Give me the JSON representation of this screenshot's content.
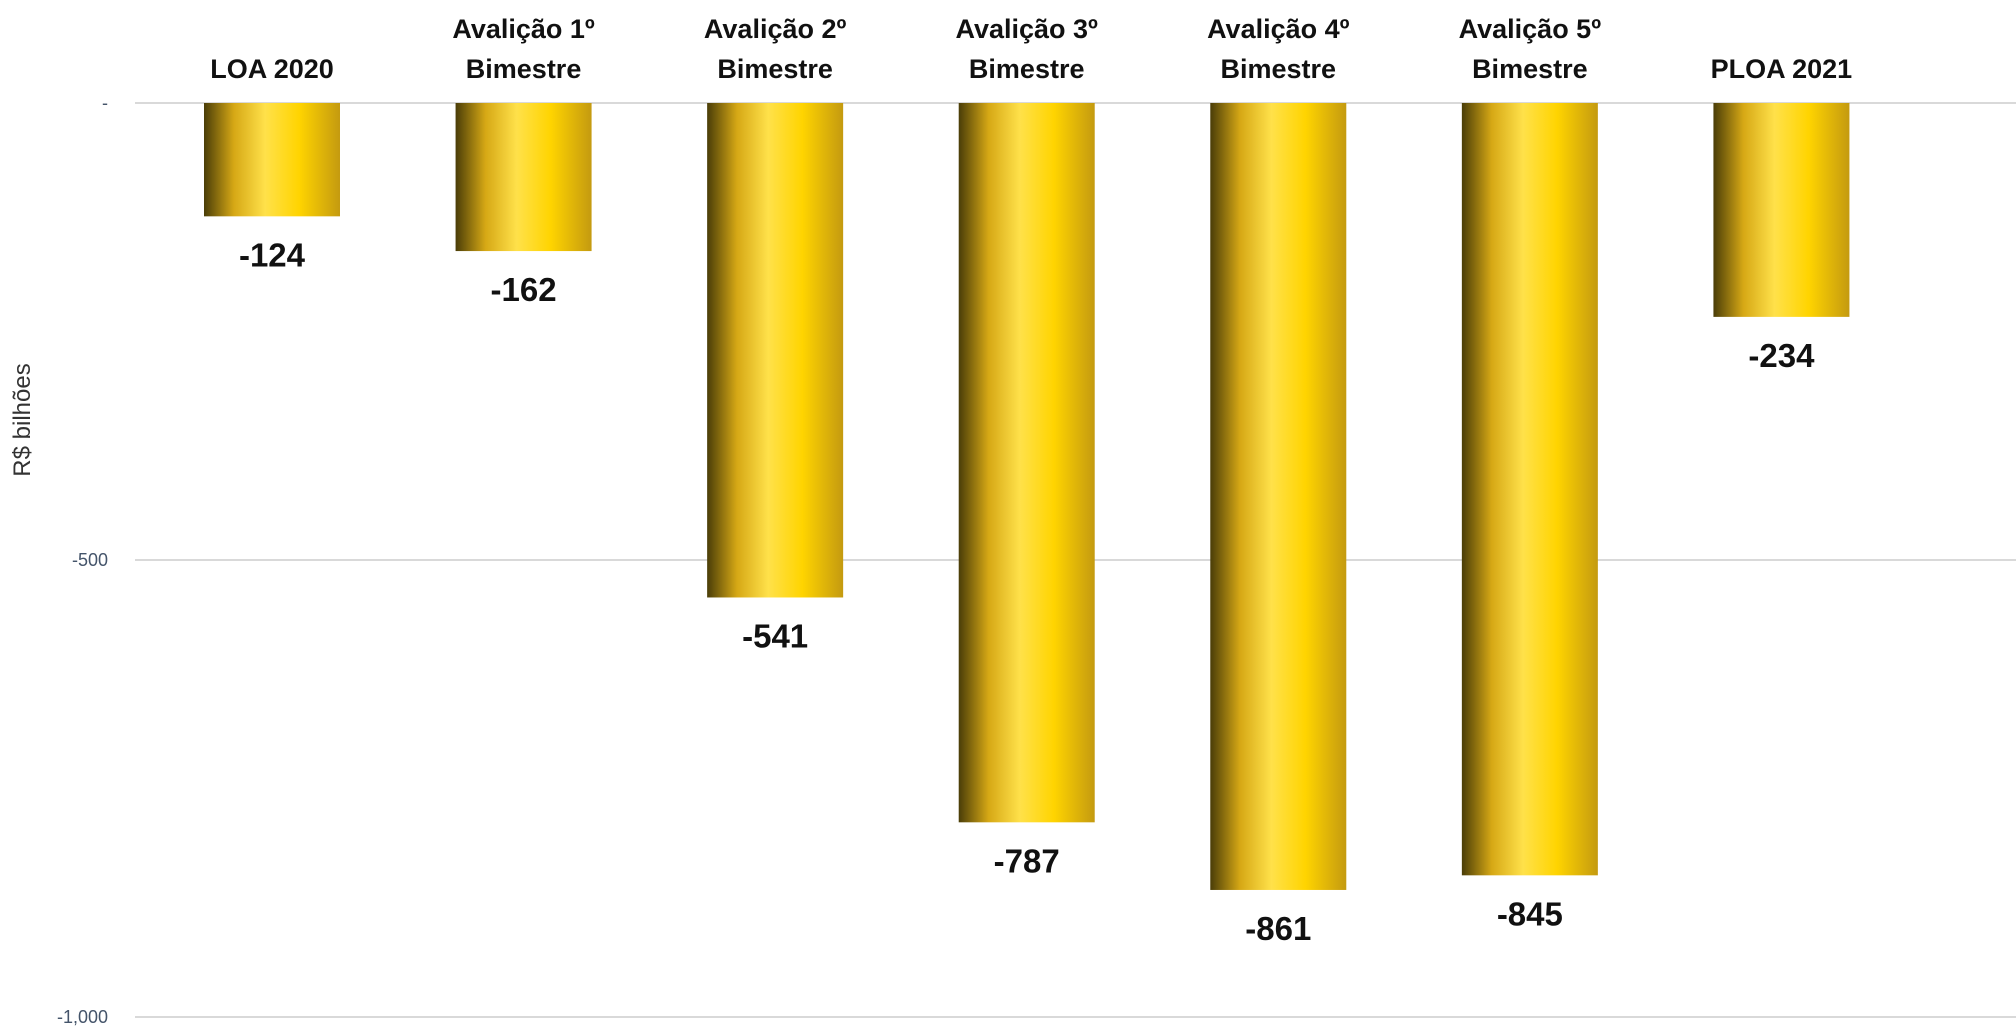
{
  "chart_data": {
    "type": "bar",
    "categories": [
      [
        "LOA 2020"
      ],
      [
        "Avalição 1º",
        "Bimestre"
      ],
      [
        "Avalição 2º",
        "Bimestre"
      ],
      [
        "Avalição 3º",
        "Bimestre"
      ],
      [
        "Avalição 4º",
        "Bimestre"
      ],
      [
        "Avalição 5º",
        "Bimestre"
      ],
      [
        "PLOA 2021"
      ]
    ],
    "values": [
      -124,
      -162,
      -541,
      -787,
      -861,
      -845,
      -234
    ],
    "value_labels": [
      "-124",
      "-162",
      "-541",
      "-787",
      "-861",
      "-845",
      "-234"
    ],
    "ylabel": "R$ bilhões",
    "ylim": [
      -1000,
      0
    ],
    "yticks": [
      0,
      -500,
      -1000
    ],
    "ytick_labels": [
      "-",
      "-500",
      "-1,000"
    ],
    "grid": true,
    "category_axis_position": "top",
    "bar_colors": {
      "dark": "#4a3d08",
      "mid": "#d6a815",
      "light": "#ffe14a",
      "bright": "#ffd400",
      "edge": "#c49a10"
    }
  }
}
